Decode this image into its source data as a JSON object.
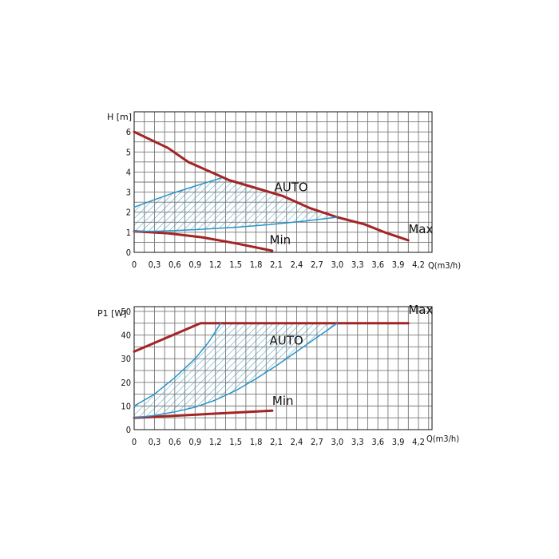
{
  "colors": {
    "red_curve": "#a32424",
    "blue_curve": "#2a93c9",
    "hatch": "#52aacd",
    "grid": "#777777"
  },
  "chart_data": [
    {
      "type": "line",
      "ylabel": "H [m]",
      "xlabel": "Q(m3/h)",
      "xlim": [
        0,
        4.4
      ],
      "ylim": [
        0,
        7
      ],
      "x_ticks": [
        0,
        0.3,
        0.6,
        0.9,
        1.2,
        1.5,
        1.8,
        2.1,
        2.4,
        2.7,
        3.0,
        3.3,
        3.6,
        3.9,
        4.2
      ],
      "x_tick_labels": [
        "0",
        "0,3",
        "0,6",
        "0,9",
        "1,2",
        "1,5",
        "1,8",
        "2,1",
        "2,4",
        "2,7",
        "3,0",
        "3,3",
        "3,6",
        "3,9",
        "4,2"
      ],
      "y_ticks": [
        0,
        1,
        2,
        3,
        4,
        5,
        6
      ],
      "y_tick_labels": [
        "0",
        "1",
        "2",
        "3",
        "4",
        "5",
        "6"
      ],
      "grid": true,
      "series": [
        {
          "name": "Max",
          "color": "#a32424",
          "x": [
            0,
            0.5,
            0.8,
            1.2,
            1.4,
            1.8,
            2.2,
            2.6,
            3.0,
            3.4,
            3.7,
            4.05
          ],
          "y": [
            6.0,
            5.2,
            4.5,
            3.9,
            3.6,
            3.2,
            2.8,
            2.2,
            1.75,
            1.4,
            1.0,
            0.6
          ]
        },
        {
          "name": "Min",
          "color": "#a32424",
          "x": [
            0,
            0.5,
            1.0,
            1.5,
            2.04
          ],
          "y": [
            1.05,
            0.95,
            0.75,
            0.45,
            0.08
          ]
        },
        {
          "color": "#2a93c9",
          "x": [
            0,
            0.3,
            0.6,
            0.9,
            1.28
          ],
          "y": [
            2.25,
            2.62,
            2.98,
            3.3,
            3.7
          ]
        },
        {
          "color": "#2a93c9",
          "x": [
            0,
            0.3,
            0.6,
            1.0,
            1.5,
            2.0,
            2.5,
            3.0
          ],
          "y": [
            1.05,
            1.05,
            1.08,
            1.15,
            1.25,
            1.38,
            1.55,
            1.75
          ]
        }
      ],
      "band": {
        "upper_x": [
          0,
          0.3,
          0.6,
          0.9,
          1.28,
          1.4,
          1.8,
          2.2,
          2.6,
          3.0
        ],
        "upper_y": [
          2.25,
          2.62,
          2.98,
          3.3,
          3.7,
          3.6,
          3.2,
          2.8,
          2.2,
          1.75
        ],
        "lower_x": [
          0,
          0.3,
          0.6,
          1.0,
          1.5,
          2.0,
          2.5,
          3.0
        ],
        "lower_y": [
          1.05,
          1.05,
          1.08,
          1.15,
          1.25,
          1.38,
          1.55,
          1.75
        ]
      },
      "annotations": [
        {
          "text": "AUTO",
          "x": 2.07,
          "y": 3.05
        },
        {
          "text": "Max",
          "x": 4.05,
          "y": 0.95
        },
        {
          "text": "Min",
          "x": 2.0,
          "y": 0.42
        }
      ]
    },
    {
      "type": "line",
      "ylabel": "P1 [W]",
      "xlabel": "Q(m3/h)",
      "xlim": [
        0,
        4.4
      ],
      "ylim": [
        0,
        52
      ],
      "x_ticks": [
        0,
        0.3,
        0.6,
        0.9,
        1.2,
        1.5,
        1.8,
        2.1,
        2.4,
        2.7,
        3.0,
        3.3,
        3.6,
        3.9,
        4.2
      ],
      "x_tick_labels": [
        "0",
        "0,3",
        "0,6",
        "0,9",
        "1,2",
        "1,5",
        "1,8",
        "2,1",
        "2,4",
        "2,7",
        "3,0",
        "3,3",
        "3,6",
        "3,9",
        "4,2"
      ],
      "y_ticks": [
        0,
        10,
        20,
        30,
        40,
        50
      ],
      "y_tick_labels": [
        "0",
        "10",
        "20",
        "30",
        "40",
        "50"
      ],
      "grid": true,
      "series": [
        {
          "name": "Max",
          "color": "#a32424",
          "x": [
            0,
            0.98,
            4.05
          ],
          "y": [
            33,
            45,
            45
          ]
        },
        {
          "name": "Min",
          "color": "#a32424",
          "x": [
            0,
            2.04
          ],
          "y": [
            5,
            8
          ]
        },
        {
          "color": "#2a93c9",
          "x": [
            0,
            0.3,
            0.6,
            0.9,
            1.1,
            1.28
          ],
          "y": [
            10,
            15,
            22,
            30,
            37,
            45
          ]
        },
        {
          "color": "#2a93c9",
          "x": [
            0,
            0.3,
            0.6,
            0.9,
            1.2,
            1.5,
            1.8,
            2.1,
            2.4,
            2.7,
            3.0
          ],
          "y": [
            5,
            6,
            7.5,
            9.5,
            12.5,
            16.5,
            21.5,
            27,
            33,
            39,
            45
          ]
        }
      ],
      "band": {
        "upper_x": [
          0,
          0.3,
          0.6,
          0.9,
          1.1,
          1.28,
          3.0
        ],
        "upper_y": [
          10,
          15,
          22,
          30,
          37,
          45,
          45
        ],
        "lower_x": [
          0,
          0.3,
          0.6,
          0.9,
          1.2,
          1.5,
          1.8,
          2.1,
          2.4,
          2.7,
          3.0
        ],
        "lower_y": [
          5,
          6,
          7.5,
          9.5,
          12.5,
          16.5,
          21.5,
          27,
          33,
          39,
          45
        ]
      },
      "annotations": [
        {
          "text": "AUTO",
          "x": 2.0,
          "y": 36
        },
        {
          "text": "Max",
          "x": 4.05,
          "y": 49
        },
        {
          "text": "Min",
          "x": 2.04,
          "y": 10.5
        }
      ]
    }
  ]
}
